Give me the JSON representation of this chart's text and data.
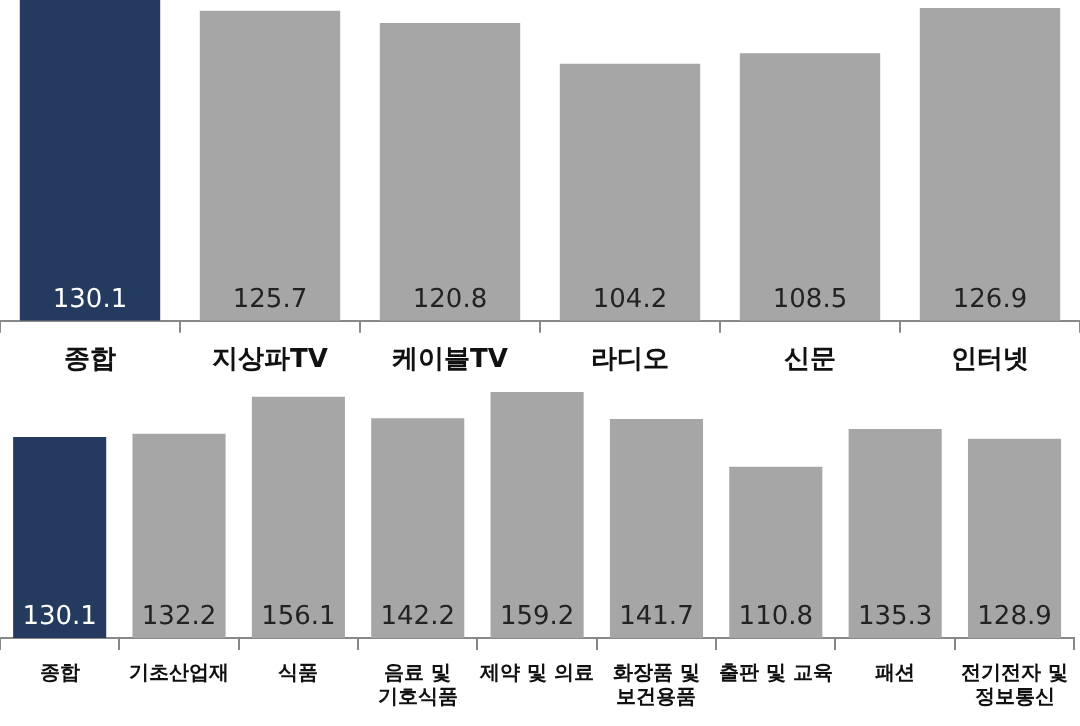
{
  "chart_data": [
    {
      "type": "bar",
      "categories": [
        "종합",
        "지상파TV",
        "케이블TV",
        "라디오",
        "신문",
        "인터넷"
      ],
      "values": [
        130.1,
        125.7,
        120.8,
        104.2,
        108.5,
        126.9
      ],
      "colors": [
        "#243a5e",
        "#a6a6a6",
        "#a6a6a6",
        "#a6a6a6",
        "#a6a6a6",
        "#a6a6a6"
      ],
      "tick_labels": "x",
      "data_labels": true,
      "grid": false,
      "legend": false
    },
    {
      "type": "bar",
      "categories": [
        "종합",
        "기초산업재",
        "식품",
        "음료 및\n기호식품",
        "제약 및 의료",
        "화장품 및\n보건용품",
        "출판 및 교육",
        "패션",
        "전기전자 및\n정보통신"
      ],
      "values": [
        130.1,
        132.2,
        156.1,
        142.2,
        159.2,
        141.7,
        110.8,
        135.3,
        128.9
      ],
      "colors": [
        "#243a5e",
        "#a6a6a6",
        "#a6a6a6",
        "#a6a6a6",
        "#a6a6a6",
        "#a6a6a6",
        "#a6a6a6",
        "#a6a6a6",
        "#a6a6a6"
      ],
      "tick_labels": "x",
      "data_labels": true,
      "grid": false,
      "legend": false
    }
  ]
}
